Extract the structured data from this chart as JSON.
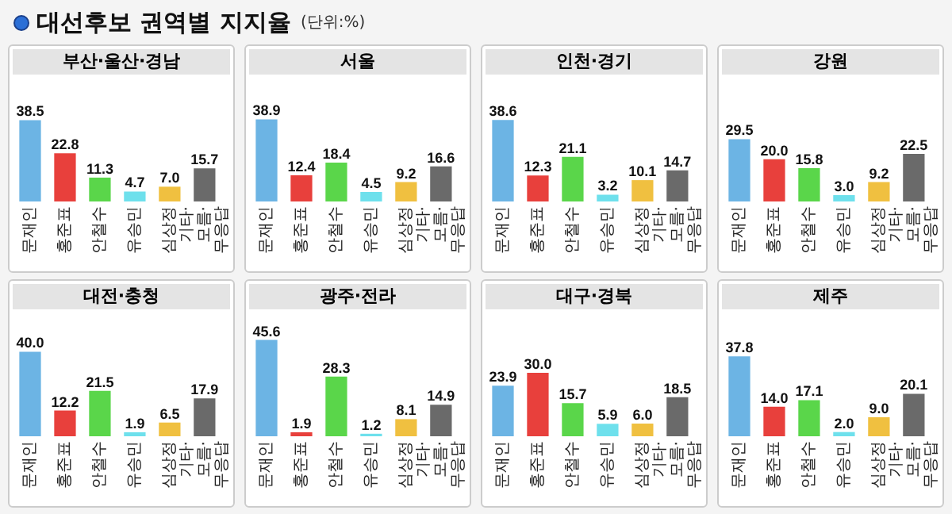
{
  "chart_data": [
    {
      "type": "other",
      "title": "대선후보 권역별 지지율",
      "subtitle": "(단위:%)"
    },
    {
      "type": "bar",
      "title": "부산·울산·경남",
      "categories": [
        "문재인",
        "홍준표",
        "안철수",
        "유승민",
        "심상정",
        "기타·모름·무응답"
      ],
      "values": [
        38.5,
        22.8,
        11.3,
        4.7,
        7.0,
        15.7
      ],
      "value_labels": [
        "38.5",
        "22.8",
        "11.3",
        "4.7",
        "7.0",
        "15.7"
      ],
      "colors": [
        "#6cb4e4",
        "#e8403c",
        "#5ad64a",
        "#6ee0ec",
        "#f0c040",
        "#6a6a6a"
      ]
    },
    {
      "type": "bar",
      "title": "서울",
      "categories": [
        "문재인",
        "홍준표",
        "안철수",
        "유승민",
        "심상정",
        "기타·모름·무응답"
      ],
      "values": [
        38.9,
        12.4,
        18.4,
        4.5,
        9.2,
        16.6
      ],
      "value_labels": [
        "38.9",
        "12.4",
        "18.4",
        "4.5",
        "9.2",
        "16.6"
      ],
      "colors": [
        "#6cb4e4",
        "#e8403c",
        "#5ad64a",
        "#6ee0ec",
        "#f0c040",
        "#6a6a6a"
      ]
    },
    {
      "type": "bar",
      "title": "인천·경기",
      "categories": [
        "문재인",
        "홍준표",
        "안철수",
        "유승민",
        "심상정",
        "기타·모름·무응답"
      ],
      "values": [
        38.6,
        12.3,
        21.1,
        3.2,
        10.1,
        14.7
      ],
      "value_labels": [
        "38.6",
        "12.3",
        "21.1",
        "3.2",
        "10.1",
        "14.7"
      ],
      "colors": [
        "#6cb4e4",
        "#e8403c",
        "#5ad64a",
        "#6ee0ec",
        "#f0c040",
        "#6a6a6a"
      ]
    },
    {
      "type": "bar",
      "title": "강원",
      "categories": [
        "문재인",
        "홍준표",
        "안철수",
        "유승민",
        "심상정",
        "기타·모름·무응답"
      ],
      "values": [
        29.5,
        20.0,
        15.8,
        3.0,
        9.2,
        22.5
      ],
      "value_labels": [
        "29.5",
        "20.0",
        "15.8",
        "3.0",
        "9.2",
        "22.5"
      ],
      "colors": [
        "#6cb4e4",
        "#e8403c",
        "#5ad64a",
        "#6ee0ec",
        "#f0c040",
        "#6a6a6a"
      ]
    },
    {
      "type": "bar",
      "title": "대전·충청",
      "categories": [
        "문재인",
        "홍준표",
        "안철수",
        "유승민",
        "심상정",
        "기타·모름·무응답"
      ],
      "values": [
        40.0,
        12.2,
        21.5,
        1.9,
        6.5,
        17.9
      ],
      "value_labels": [
        "40.0",
        "12.2",
        "21.5",
        "1.9",
        "6.5",
        "17.9"
      ],
      "colors": [
        "#6cb4e4",
        "#e8403c",
        "#5ad64a",
        "#6ee0ec",
        "#f0c040",
        "#6a6a6a"
      ]
    },
    {
      "type": "bar",
      "title": "광주·전라",
      "categories": [
        "문재인",
        "홍준표",
        "안철수",
        "유승민",
        "심상정",
        "기타·모름·무응답"
      ],
      "values": [
        45.6,
        1.9,
        28.3,
        1.2,
        8.1,
        14.9
      ],
      "value_labels": [
        "45.6",
        "1.9",
        "28.3",
        "1.2",
        "8.1",
        "14.9"
      ],
      "colors": [
        "#6cb4e4",
        "#e8403c",
        "#5ad64a",
        "#6ee0ec",
        "#f0c040",
        "#6a6a6a"
      ]
    },
    {
      "type": "bar",
      "title": "대구·경북",
      "categories": [
        "문재인",
        "홍준표",
        "안철수",
        "유승민",
        "심상정",
        "기타·모름·무응답"
      ],
      "values": [
        23.9,
        30.0,
        15.7,
        5.9,
        6.0,
        18.5
      ],
      "value_labels": [
        "23.9",
        "30.0",
        "15.7",
        "5.9",
        "6.0",
        "18.5"
      ],
      "colors": [
        "#6cb4e4",
        "#e8403c",
        "#5ad64a",
        "#6ee0ec",
        "#f0c040",
        "#6a6a6a"
      ]
    },
    {
      "type": "bar",
      "title": "제주",
      "categories": [
        "문재인",
        "홍준표",
        "안철수",
        "유승민",
        "심상정",
        "기타·모름·무응답"
      ],
      "values": [
        37.8,
        14.0,
        17.1,
        2.0,
        9.0,
        20.1
      ],
      "value_labels": [
        "37.8",
        "14.0",
        "17.1",
        "2.0",
        "9.0",
        "20.1"
      ],
      "colors": [
        "#6cb4e4",
        "#e8403c",
        "#5ad64a",
        "#6ee0ec",
        "#f0c040",
        "#6a6a6a"
      ]
    }
  ]
}
